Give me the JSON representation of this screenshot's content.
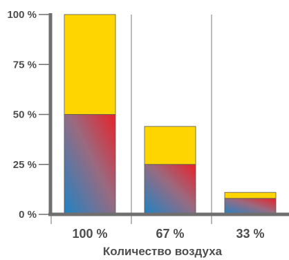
{
  "chart_data": {
    "type": "bar",
    "stacked": true,
    "xlabel": "Количество воздуха",
    "ylabel": "",
    "ylim": [
      0,
      100
    ],
    "yticks": [
      0,
      25,
      50,
      75,
      100
    ],
    "ytick_labels": [
      "0 %",
      "25 %",
      "50 %",
      "75 %",
      "100 %"
    ],
    "categories": [
      "100 %",
      "67 %",
      "33 %"
    ],
    "series": [
      {
        "values": [
          50,
          25,
          8
        ],
        "fill": "gradient",
        "colors": [
          "#1f83c4",
          "#e8222a"
        ]
      },
      {
        "values": [
          50,
          19,
          3
        ],
        "color": "#ffd500"
      }
    ],
    "grid": {
      "vertical": true,
      "horizontal": false
    },
    "colors": {
      "axis": "#6f6f6f",
      "grid": "#777777",
      "text": "#4d4d4d",
      "bar_edge": "#555555"
    }
  }
}
